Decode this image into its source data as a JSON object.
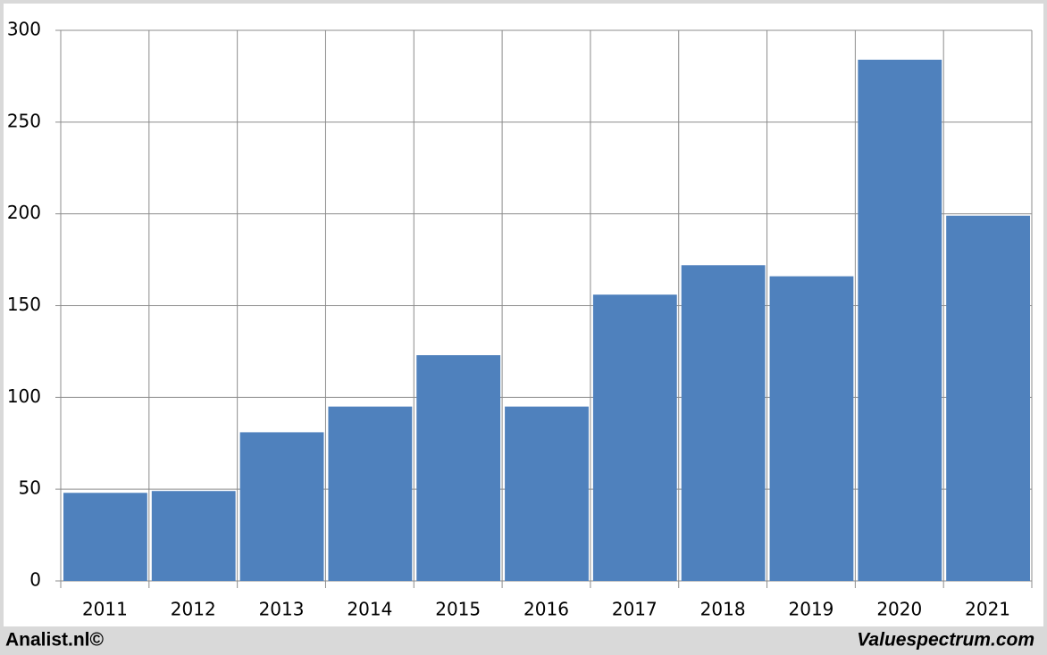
{
  "chart_data": {
    "type": "bar",
    "categories": [
      "2011",
      "2012",
      "2013",
      "2014",
      "2015",
      "2016",
      "2017",
      "2018",
      "2019",
      "2020",
      "2021"
    ],
    "values": [
      48,
      49,
      81,
      95,
      123,
      95,
      156,
      172,
      166,
      284,
      199
    ],
    "color": "#4f81bd",
    "ylim": [
      0,
      300
    ],
    "yticks": [
      0,
      50,
      100,
      150,
      200,
      250,
      300
    ],
    "grid": true
  },
  "footer": {
    "left": "Analist.nl©",
    "right": "Valuespectrum.com"
  }
}
